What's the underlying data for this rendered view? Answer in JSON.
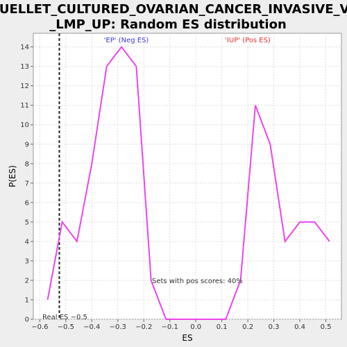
{
  "chart_data": {
    "type": "line",
    "title_line1": "OUELLET_CULTURED_OVARIAN_CANCER_INVASIVE_VS",
    "title_line2": "_LMP_UP: Random ES distribution",
    "xlabel": "ES",
    "ylabel": "P(ES)",
    "xlim": [
      -0.625,
      0.56
    ],
    "ylim": [
      0,
      14.7
    ],
    "x_ticks": [
      -0.6,
      -0.5,
      -0.4,
      -0.3,
      -0.2,
      -0.1,
      0.0,
      0.1,
      0.2,
      0.3,
      0.4,
      0.5
    ],
    "x_tick_labels": [
      "−0.6",
      "−0.5",
      "−0.4",
      "−0.3",
      "−0.2",
      "−0.1",
      "0.0",
      "0.1",
      "0.2",
      "0.3",
      "0.4",
      "0.5"
    ],
    "y_ticks": [
      0,
      1,
      2,
      3,
      4,
      5,
      6,
      7,
      8,
      9,
      10,
      11,
      12,
      13,
      14
    ],
    "y_tick_labels": [
      "0",
      "1",
      "2",
      "3",
      "4",
      "5",
      "6",
      "7",
      "8",
      "9",
      "10",
      "11",
      "12",
      "13",
      "14"
    ],
    "grid": true,
    "series": [
      {
        "color": "#ee44ee",
        "x": [
          -0.57,
          -0.514,
          -0.457,
          -0.4,
          -0.343,
          -0.286,
          -0.229,
          -0.172,
          -0.115,
          -0.058,
          0.0,
          0.058,
          0.115,
          0.172,
          0.229,
          0.286,
          0.343,
          0.4,
          0.457,
          0.514
        ],
        "y": [
          1,
          5,
          4,
          8,
          13,
          14,
          13,
          2,
          0,
          0,
          0,
          0,
          0,
          2,
          11,
          9,
          4,
          5,
          5,
          4
        ]
      }
    ],
    "real_es": -0.525,
    "annotations": {
      "neg_label": "'EP' (Neg ES)",
      "neg_color": "#3a3acc",
      "pos_label": "'IUP' (Pos ES)",
      "pos_color": "#dd3333",
      "pos_scores_text": "Sets with pos scores: 40%",
      "real_es_text": "Real ES −0.5"
    }
  }
}
